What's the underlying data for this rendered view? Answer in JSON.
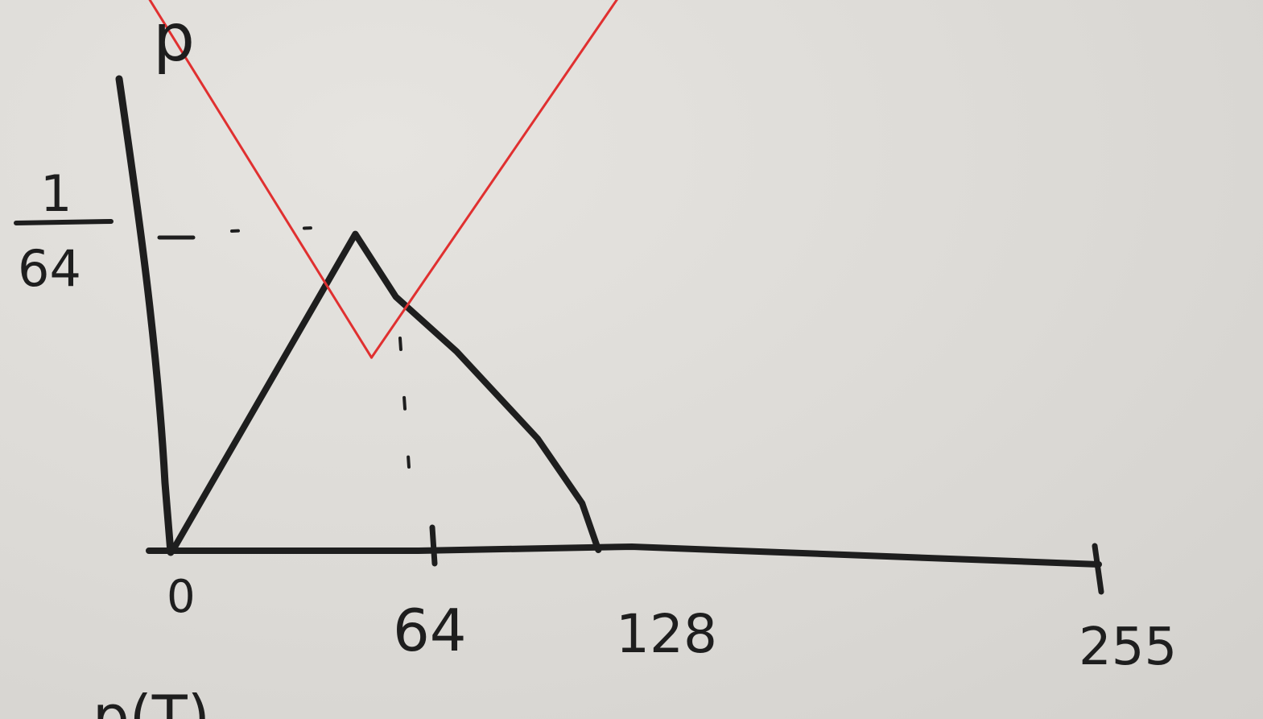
{
  "chart_data": {
    "type": "line",
    "ylabel": "p",
    "y_tick_label": {
      "numerator": "1",
      "denominator": "64"
    },
    "x_ticks": [
      "0",
      "64",
      "128",
      "255"
    ],
    "xlim": [
      0,
      255
    ],
    "grid": false,
    "series": [
      {
        "color": "#1e1e1e",
        "points": [
          [
            0,
            0
          ],
          [
            45,
            0.0156
          ],
          [
            55,
            0.0125
          ],
          [
            70,
            0.0098
          ],
          [
            90,
            0.0055
          ],
          [
            101,
            0.0023
          ],
          [
            105,
            0
          ]
        ]
      },
      {
        "color": "#e03030",
        "points": [
          [
            -13,
            0.0295
          ],
          [
            49,
            0.0095
          ],
          [
            121,
            0.0305
          ]
        ]
      }
    ],
    "partial_text_bottom": "p(T)"
  },
  "colors": {
    "ink": "#1e1e1e",
    "red_pen": "#e03030",
    "paper": "#dedcd8"
  }
}
